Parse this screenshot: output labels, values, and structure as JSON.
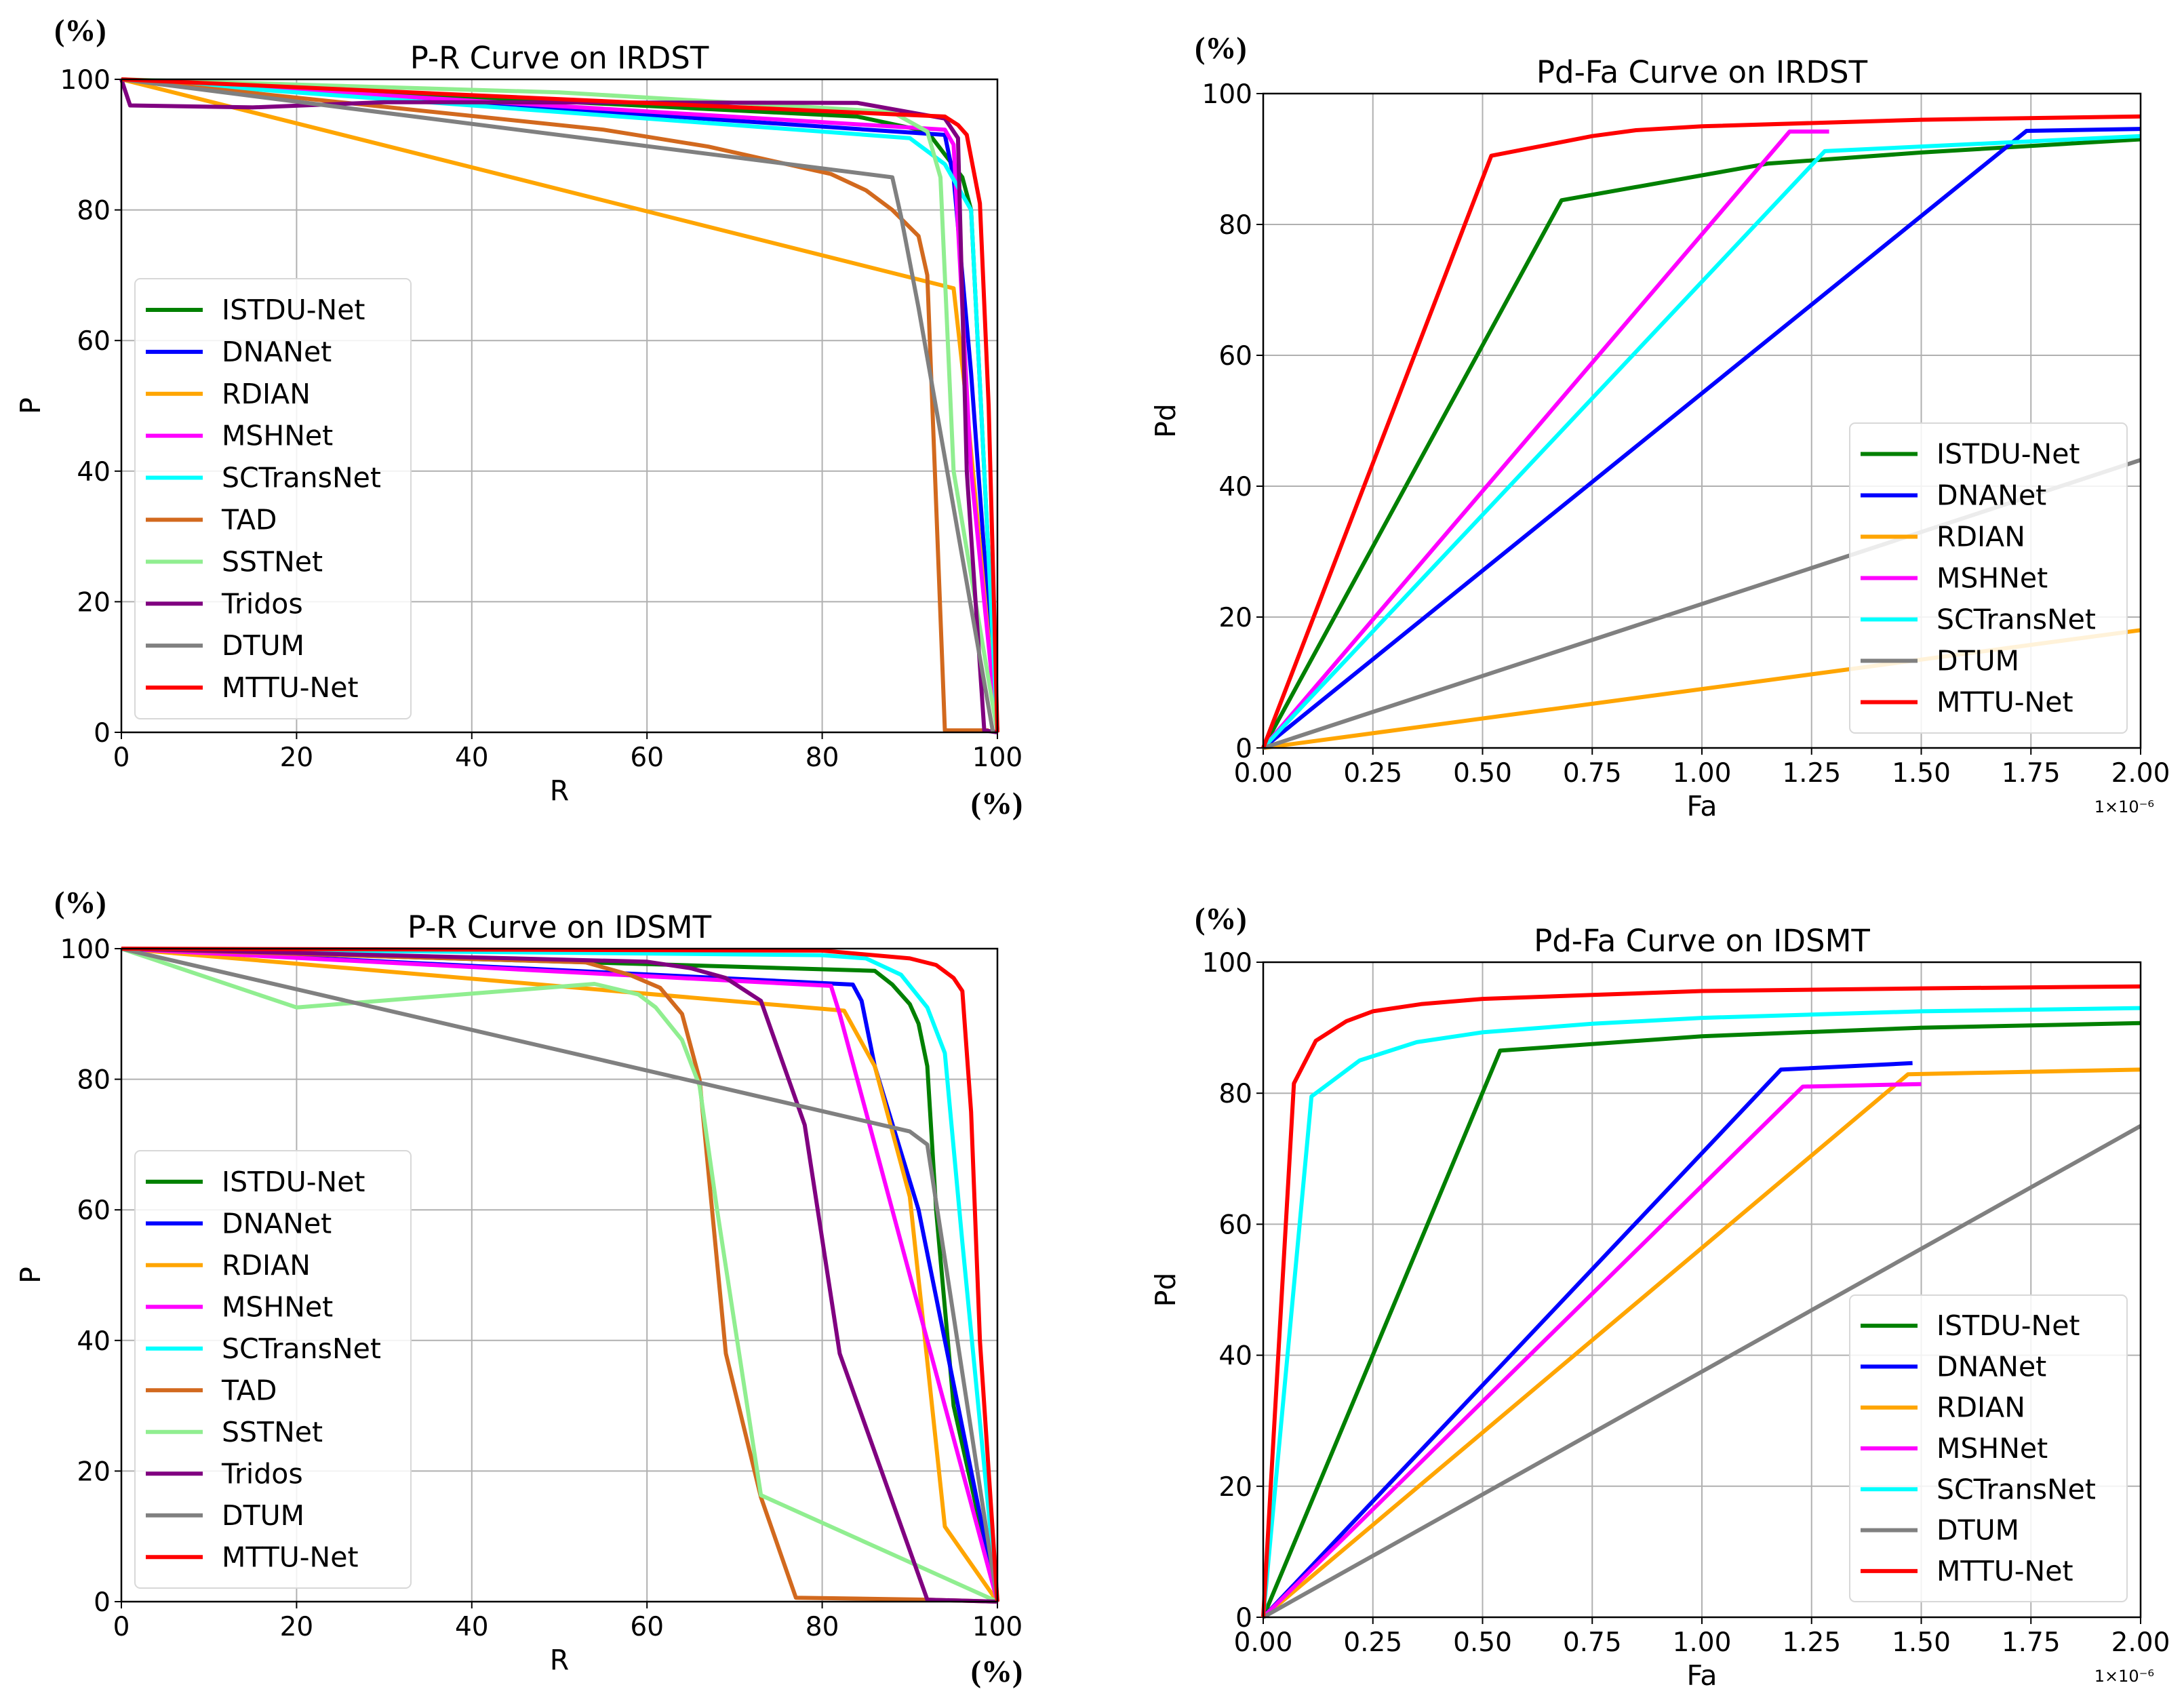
{
  "colors": {
    "ISTDU-Net": "#008000",
    "DNANet": "#0000ff",
    "RDIAN": "#ffa500",
    "MSHNet": "#ff00ff",
    "SCTransNet": "#00ffff",
    "TAD": "#d2691e",
    "SSTNet": "#90ee90",
    "Tridos": "#800080",
    "DTUM": "#808080",
    "MTTU-Net": "#ff0000"
  },
  "chart_data": [
    {
      "type": "line",
      "title": "P-R Curve on IRDST",
      "xlabel": "R",
      "ylabel": "P",
      "y_unit": "(%)",
      "x_unit": "(%)",
      "xlim": [
        0,
        100
      ],
      "ylim": [
        0,
        100
      ],
      "xticks": [
        0,
        20,
        40,
        60,
        80,
        100
      ],
      "xtick_labels": [
        "0",
        "20",
        "40",
        "60",
        "80",
        "100"
      ],
      "yticks": [
        0,
        20,
        40,
        60,
        80,
        100
      ],
      "ytick_labels": [
        "0",
        "20",
        "40",
        "60",
        "80",
        "100"
      ],
      "grid": true,
      "legend_placement": "center-left",
      "series": [
        {
          "name": "ISTDU-Net",
          "points": [
            [
              0,
              100
            ],
            [
              84,
              94.3
            ],
            [
              92,
              92
            ],
            [
              96,
              85
            ],
            [
              97,
              80
            ],
            [
              100,
              0
            ]
          ]
        },
        {
          "name": "DNANet",
          "points": [
            [
              0,
              100
            ],
            [
              94,
              91.5
            ],
            [
              95,
              85
            ],
            [
              97,
              55
            ],
            [
              100,
              0
            ]
          ]
        },
        {
          "name": "RDIAN",
          "points": [
            [
              0,
              100
            ],
            [
              95,
              68
            ],
            [
              96.5,
              50
            ],
            [
              100,
              0
            ]
          ]
        },
        {
          "name": "MSHNet",
          "points": [
            [
              0,
              100
            ],
            [
              94,
              92.3
            ],
            [
              95,
              90
            ],
            [
              97,
              40
            ],
            [
              100,
              0
            ]
          ]
        },
        {
          "name": "SCTransNet",
          "points": [
            [
              0,
              100
            ],
            [
              90,
              91
            ],
            [
              94,
              87
            ],
            [
              97,
              80
            ],
            [
              100,
              0
            ]
          ]
        },
        {
          "name": "TAD",
          "points": [
            [
              0,
              100
            ],
            [
              55,
              92.3
            ],
            [
              67,
              89.7
            ],
            [
              81,
              85.5
            ],
            [
              85,
              83
            ],
            [
              88,
              80
            ],
            [
              91,
              76
            ],
            [
              92,
              70
            ],
            [
              94,
              0.3
            ],
            [
              99,
              0.3
            ]
          ]
        },
        {
          "name": "SSTNet",
          "points": [
            [
              0,
              100
            ],
            [
              50,
              98
            ],
            [
              88,
              95
            ],
            [
              92,
              92
            ],
            [
              93.5,
              85
            ],
            [
              95,
              40
            ],
            [
              100,
              0
            ]
          ]
        },
        {
          "name": "Tridos",
          "points": [
            [
              0,
              100
            ],
            [
              1,
              96
            ],
            [
              15,
              95.7
            ],
            [
              30,
              96.5
            ],
            [
              84,
              96.4
            ],
            [
              94,
              94
            ],
            [
              95.5,
              91
            ],
            [
              96.5,
              40
            ],
            [
              98.5,
              0.3
            ],
            [
              100,
              0
            ]
          ]
        },
        {
          "name": "DTUM",
          "points": [
            [
              0,
              100
            ],
            [
              88,
              85
            ],
            [
              89,
              79
            ],
            [
              91,
              65
            ],
            [
              99.5,
              0
            ]
          ]
        },
        {
          "name": "MTTU-Net",
          "points": [
            [
              0,
              100
            ],
            [
              94,
              94.3
            ],
            [
              95.5,
              93
            ],
            [
              96.5,
              91.5
            ],
            [
              98,
              81
            ],
            [
              99,
              50
            ],
            [
              100,
              0
            ]
          ]
        }
      ]
    },
    {
      "type": "line",
      "title": "Pd-Fa Curve on IRDST",
      "xlabel": "Fa",
      "ylabel": "Pd",
      "y_unit": "(%)",
      "x_offset_text": "1×10⁻⁶",
      "xlim": [
        0,
        2.0
      ],
      "ylim": [
        0,
        100
      ],
      "xticks": [
        0,
        0.25,
        0.5,
        0.75,
        1.0,
        1.25,
        1.5,
        1.75,
        2.0
      ],
      "xtick_labels": [
        "0.00",
        "0.25",
        "0.50",
        "0.75",
        "1.00",
        "1.25",
        "1.50",
        "1.75",
        "2.00"
      ],
      "yticks": [
        0,
        20,
        40,
        60,
        80,
        100
      ],
      "ytick_labels": [
        "0",
        "20",
        "40",
        "60",
        "80",
        "100"
      ],
      "grid": true,
      "legend_placement": "lower-right",
      "series": [
        {
          "name": "ISTDU-Net",
          "points": [
            [
              0,
              0
            ],
            [
              0.68,
              83.7
            ],
            [
              1.15,
              89.3
            ],
            [
              1.5,
              91
            ],
            [
              2,
              93
            ]
          ]
        },
        {
          "name": "DNANet",
          "points": [
            [
              0,
              0
            ],
            [
              1.74,
              94.3
            ],
            [
              2,
              94.6
            ]
          ]
        },
        {
          "name": "RDIAN",
          "points": [
            [
              0,
              0
            ],
            [
              2,
              18
            ]
          ]
        },
        {
          "name": "MSHNet",
          "points": [
            [
              0,
              0
            ],
            [
              1.2,
              94.2
            ],
            [
              1.29,
              94.2
            ]
          ]
        },
        {
          "name": "SCTransNet",
          "points": [
            [
              0,
              0
            ],
            [
              1.28,
              91.2
            ],
            [
              2,
              93.5
            ]
          ]
        },
        {
          "name": "DTUM",
          "points": [
            [
              0,
              0
            ],
            [
              2,
              44
            ]
          ]
        },
        {
          "name": "MTTU-Net",
          "points": [
            [
              0,
              0
            ],
            [
              0.52,
              90.5
            ],
            [
              0.75,
              93.5
            ],
            [
              0.85,
              94.4
            ],
            [
              1.0,
              95
            ],
            [
              1.5,
              96
            ],
            [
              2,
              96.5
            ]
          ]
        }
      ]
    },
    {
      "type": "line",
      "title": "P-R Curve on IDSMT",
      "xlabel": "R",
      "ylabel": "P",
      "y_unit": "(%)",
      "x_unit": "(%)",
      "xlim": [
        0,
        100
      ],
      "ylim": [
        0,
        100
      ],
      "xticks": [
        0,
        20,
        40,
        60,
        80,
        100
      ],
      "xtick_labels": [
        "0",
        "20",
        "40",
        "60",
        "80",
        "100"
      ],
      "yticks": [
        0,
        20,
        40,
        60,
        80,
        100
      ],
      "ytick_labels": [
        "0",
        "20",
        "40",
        "60",
        "80",
        "100"
      ],
      "grid": true,
      "legend_placement": "lower-left",
      "series": [
        {
          "name": "ISTDU-Net",
          "points": [
            [
              0,
              100
            ],
            [
              86,
              96.6
            ],
            [
              88,
              94.5
            ],
            [
              90,
              91.5
            ],
            [
              91,
              88.5
            ],
            [
              92,
              82
            ],
            [
              93,
              60
            ],
            [
              95,
              30
            ],
            [
              100,
              0
            ]
          ]
        },
        {
          "name": "DNANet",
          "points": [
            [
              0,
              100
            ],
            [
              83.5,
              94.5
            ],
            [
              84.5,
              92
            ],
            [
              86,
              82
            ],
            [
              91,
              60
            ],
            [
              100,
              0
            ]
          ]
        },
        {
          "name": "RDIAN",
          "points": [
            [
              0,
              100
            ],
            [
              82.5,
              90.5
            ],
            [
              86,
              82
            ],
            [
              90,
              62
            ],
            [
              94,
              11.5
            ],
            [
              100,
              0
            ]
          ]
        },
        {
          "name": "MSHNet",
          "points": [
            [
              0,
              100
            ],
            [
              81,
              94.3
            ],
            [
              82,
              90
            ],
            [
              86,
              70
            ],
            [
              100,
              0
            ]
          ]
        },
        {
          "name": "SCTransNet",
          "points": [
            [
              0,
              100
            ],
            [
              80,
              99
            ],
            [
              85,
              98.5
            ],
            [
              89,
              96
            ],
            [
              92,
              91
            ],
            [
              94,
              84
            ],
            [
              96,
              55
            ],
            [
              100,
              0
            ]
          ]
        },
        {
          "name": "TAD",
          "points": [
            [
              0,
              100
            ],
            [
              53,
              97.9
            ],
            [
              58,
              96
            ],
            [
              61.5,
              94
            ],
            [
              64,
              90
            ],
            [
              66,
              80
            ],
            [
              69,
              38
            ],
            [
              73,
              16
            ],
            [
              77,
              0.6
            ],
            [
              92,
              0.3
            ],
            [
              100,
              0
            ]
          ]
        },
        {
          "name": "SSTNet",
          "points": [
            [
              0,
              100
            ],
            [
              20,
              91
            ],
            [
              54,
              94.6
            ],
            [
              59,
              93
            ],
            [
              61,
              91
            ],
            [
              64,
              86
            ],
            [
              66,
              79
            ],
            [
              68,
              60
            ],
            [
              73,
              16.3
            ],
            [
              100,
              0
            ]
          ]
        },
        {
          "name": "Tridos",
          "points": [
            [
              0,
              100
            ],
            [
              60,
              98
            ],
            [
              65,
              97
            ],
            [
              69,
              95.5
            ],
            [
              73,
              92
            ],
            [
              78,
              73
            ],
            [
              82,
              38
            ],
            [
              92,
              0.3
            ],
            [
              100,
              0
            ]
          ]
        },
        {
          "name": "DTUM",
          "points": [
            [
              0,
              100
            ],
            [
              90,
              72
            ],
            [
              92,
              70
            ],
            [
              100,
              0
            ]
          ]
        },
        {
          "name": "MTTU-Net",
          "points": [
            [
              0,
              100
            ],
            [
              80,
              99.7
            ],
            [
              90,
              98.5
            ],
            [
              93,
              97.5
            ],
            [
              95,
              95.5
            ],
            [
              96,
              93.5
            ],
            [
              97,
              75
            ],
            [
              98,
              40
            ],
            [
              100,
              0
            ]
          ]
        }
      ]
    },
    {
      "type": "line",
      "title": "Pd-Fa Curve on IDSMT",
      "xlabel": "Fa",
      "ylabel": "Pd",
      "y_unit": "(%)",
      "x_offset_text": "1×10⁻⁶",
      "xlim": [
        0,
        2.0
      ],
      "ylim": [
        0,
        100
      ],
      "xticks": [
        0,
        0.25,
        0.5,
        0.75,
        1.0,
        1.25,
        1.5,
        1.75,
        2.0
      ],
      "xtick_labels": [
        "0.00",
        "0.25",
        "0.50",
        "0.75",
        "1.00",
        "1.25",
        "1.50",
        "1.75",
        "2.00"
      ],
      "yticks": [
        0,
        20,
        40,
        60,
        80,
        100
      ],
      "ytick_labels": [
        "0",
        "20",
        "40",
        "60",
        "80",
        "100"
      ],
      "grid": true,
      "legend_placement": "lower-right",
      "series": [
        {
          "name": "ISTDU-Net",
          "points": [
            [
              0,
              0
            ],
            [
              0.54,
              86.5
            ],
            [
              1,
              88.7
            ],
            [
              1.5,
              90
            ],
            [
              2,
              90.7
            ]
          ]
        },
        {
          "name": "DNANet",
          "points": [
            [
              0,
              0
            ],
            [
              1.18,
              83.6
            ],
            [
              1.48,
              84.6
            ]
          ]
        },
        {
          "name": "RDIAN",
          "points": [
            [
              0,
              0
            ],
            [
              1.47,
              82.9
            ],
            [
              2,
              83.6
            ]
          ]
        },
        {
          "name": "MSHNet",
          "points": [
            [
              0,
              0
            ],
            [
              1.23,
              81
            ],
            [
              1.5,
              81.4
            ]
          ]
        },
        {
          "name": "SCTransNet",
          "points": [
            [
              0,
              0
            ],
            [
              0.11,
              79.5
            ],
            [
              0.22,
              85
            ],
            [
              0.35,
              87.8
            ],
            [
              0.5,
              89.3
            ],
            [
              0.75,
              90.6
            ],
            [
              1,
              91.5
            ],
            [
              1.5,
              92.5
            ],
            [
              2,
              93
            ]
          ]
        },
        {
          "name": "DTUM",
          "points": [
            [
              0,
              0
            ],
            [
              2,
              75
            ]
          ]
        },
        {
          "name": "MTTU-Net",
          "points": [
            [
              0,
              0
            ],
            [
              0.07,
              81.5
            ],
            [
              0.12,
              88
            ],
            [
              0.19,
              91
            ],
            [
              0.25,
              92.5
            ],
            [
              0.36,
              93.6
            ],
            [
              0.5,
              94.4
            ],
            [
              0.75,
              95
            ],
            [
              1,
              95.6
            ],
            [
              1.5,
              96
            ],
            [
              2,
              96.3
            ]
          ]
        }
      ]
    }
  ]
}
